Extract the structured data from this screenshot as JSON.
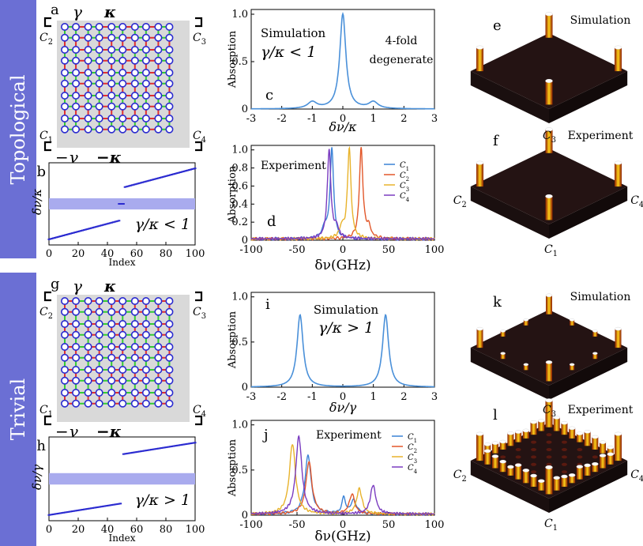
{
  "sidebar": {
    "topological": "Topological",
    "trivial": "Trivial"
  },
  "colors": {
    "accent": "#6b6fd4",
    "green": "#33cc33",
    "red": "#e03030",
    "blue": "#2a2ad0",
    "sim": "#4a90d9",
    "c1": "#3b82d6",
    "c2": "#e2572a",
    "c3": "#e8b32c",
    "c4": "#7a3cc0"
  },
  "panels": {
    "a": {
      "label": "a",
      "gamma": "γ",
      "kappa": "κ",
      "neg_gamma": "−γ",
      "neg_kappa": "−κ",
      "c1": "C",
      "c2": "C",
      "c3": "C",
      "c4": "C",
      "s1": "1",
      "s2": "2",
      "s3": "3",
      "s4": "4"
    },
    "b": {
      "label": "b",
      "ylabel": "δν/κ",
      "xlabel": "Index",
      "annotation": "γ/κ < 1",
      "xticks": [
        "0",
        "20",
        "40",
        "60",
        "80",
        "100"
      ]
    },
    "c": {
      "label": "c",
      "title1": "Simulation",
      "title2": "γ/κ < 1",
      "note1": "4-fold",
      "note2": "degenerate",
      "ylabel": "Absorption",
      "xlabel": "δν/κ",
      "xticks": [
        "-3",
        "-2",
        "-1",
        "0",
        "1",
        "2",
        "3"
      ],
      "yticks": [
        "0",
        "0.5",
        "1.0"
      ]
    },
    "d": {
      "label": "d",
      "title": "Experiment",
      "ylabel": "Absorption",
      "xlabel": "δν(GHz)",
      "xticks": [
        "-100",
        "-50",
        "0",
        "50",
        "100"
      ],
      "yticks": [
        "0",
        "0.2",
        "0.4",
        "0.6",
        "0.8",
        "1.0"
      ]
    },
    "e": {
      "label": "e",
      "title": "Simulation"
    },
    "f": {
      "label": "f",
      "title": "Experiment",
      "c1": "C",
      "c2": "C",
      "c3": "C",
      "c4": "C",
      "s1": "1",
      "s2": "2",
      "s3": "3",
      "s4": "4"
    },
    "g": {
      "label": "g",
      "gamma": "γ",
      "kappa": "κ",
      "neg_gamma": "−γ",
      "neg_kappa": "−κ",
      "c1": "C",
      "c2": "C",
      "c3": "C",
      "c4": "C",
      "s1": "1",
      "s2": "2",
      "s3": "3",
      "s4": "4"
    },
    "h": {
      "label": "h",
      "ylabel": "δν/γ",
      "xlabel": "Index",
      "annotation": "γ/κ > 1",
      "xticks": [
        "0",
        "20",
        "40",
        "60",
        "80",
        "100"
      ]
    },
    "i": {
      "label": "i",
      "title1": "Simulation",
      "title2": "γ/κ > 1",
      "ylabel": "Absorption",
      "xlabel": "δν/γ",
      "xticks": [
        "-3",
        "-2",
        "-1",
        "0",
        "1",
        "2",
        "3"
      ],
      "yticks": [
        "0",
        "0.5",
        "1.0"
      ]
    },
    "j": {
      "label": "j",
      "title": "Experiment",
      "ylabel": "Absorption",
      "xlabel": "δν(GHz)",
      "xticks": [
        "-100",
        "-50",
        "0",
        "50",
        "100"
      ],
      "yticks": [
        "0",
        "0.5",
        "1.0"
      ]
    },
    "k": {
      "label": "k",
      "title": "Simulation"
    },
    "l": {
      "label": "l",
      "title": "Experiment",
      "c1": "C",
      "c2": "C",
      "c3": "C",
      "c4": "C",
      "s1": "1",
      "s2": "2",
      "s3": "3",
      "s4": "4"
    }
  },
  "legend": [
    {
      "name": "C",
      "sub": "1"
    },
    {
      "name": "C",
      "sub": "2"
    },
    {
      "name": "C",
      "sub": "3"
    },
    {
      "name": "C",
      "sub": "4"
    }
  ],
  "chart_data": [
    {
      "type": "scatter",
      "panel": "b",
      "title": "",
      "xlabel": "Index",
      "ylabel": "δν/κ",
      "xlim": [
        0,
        100
      ],
      "series": [
        {
          "name": "lower band",
          "x": [
            0,
            48
          ],
          "y": [
            -1.9,
            -0.9
          ]
        },
        {
          "name": "edge states",
          "x": [
            48,
            51
          ],
          "y": [
            0,
            0
          ]
        },
        {
          "name": "upper band",
          "x": [
            52,
            100
          ],
          "y": [
            0.9,
            1.9
          ]
        }
      ]
    },
    {
      "type": "line",
      "panel": "c",
      "title": "Simulation",
      "xlabel": "δν/κ",
      "ylabel": "Absorption",
      "xlim": [
        -3,
        3
      ],
      "ylim": [
        0,
        1.05
      ],
      "peaks": [
        {
          "x": 0,
          "height": 1.0
        },
        {
          "x": -1,
          "height": 0.09
        },
        {
          "x": 1,
          "height": 0.09
        }
      ]
    },
    {
      "type": "line",
      "panel": "d",
      "title": "Experiment",
      "xlabel": "δν(GHz)",
      "ylabel": "Absorption",
      "xlim": [
        -100,
        100
      ],
      "ylim": [
        0,
        1.05
      ],
      "series": [
        {
          "name": "C1",
          "peak_x": -12,
          "peak_y": 1.0
        },
        {
          "name": "C2",
          "peak_x": 20,
          "peak_y": 1.0
        },
        {
          "name": "C3",
          "peak_x": 7,
          "peak_y": 1.0
        },
        {
          "name": "C4",
          "peak_x": -15,
          "peak_y": 0.98
        }
      ]
    },
    {
      "type": "line",
      "panel": "i",
      "title": "Simulation",
      "xlabel": "δν/γ",
      "ylabel": "Absorption",
      "xlim": [
        -3,
        3
      ],
      "ylim": [
        0,
        1.05
      ],
      "peaks": [
        {
          "x": -1.4,
          "height": 0.8
        },
        {
          "x": 1.4,
          "height": 0.8
        }
      ]
    },
    {
      "type": "line",
      "panel": "j",
      "title": "Experiment",
      "xlabel": "δν(GHz)",
      "ylabel": "Absorption",
      "xlim": [
        -100,
        100
      ],
      "ylim": [
        0,
        1.05
      ],
      "series": [
        {
          "name": "C1",
          "peak_x": -38,
          "peak_y": 0.65
        },
        {
          "name": "C2",
          "peak_x": -37,
          "peak_y": 0.58
        },
        {
          "name": "C3",
          "peak_x": -55,
          "peak_y": 0.78
        },
        {
          "name": "C4",
          "peak_x": -48,
          "peak_y": 0.86
        }
      ]
    },
    {
      "type": "scatter",
      "panel": "h",
      "title": "",
      "xlabel": "Index",
      "ylabel": "δν/γ",
      "xlim": [
        0,
        100
      ],
      "series": [
        {
          "name": "lower band",
          "x": [
            0,
            49
          ],
          "y": [
            -1.9,
            -1.3
          ]
        },
        {
          "name": "upper band",
          "x": [
            51,
            100
          ],
          "y": [
            1.3,
            1.9
          ]
        }
      ]
    }
  ]
}
